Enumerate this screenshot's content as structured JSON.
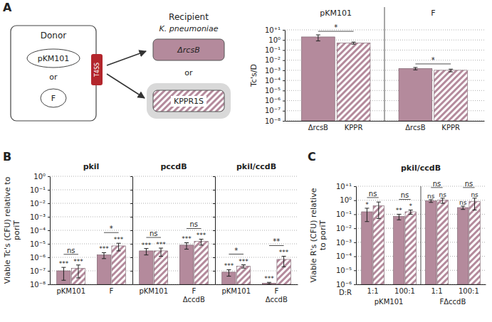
{
  "panel_labels": [
    "A",
    "B",
    "C"
  ],
  "diagram": {
    "donor": "Donor",
    "plasmids": [
      "pKM101",
      "F"
    ],
    "plasmid_or": "or",
    "t4ss": "T4SS",
    "recipient": "Recipient",
    "species": "K. pneumoniae",
    "strains": [
      "ΔrcsB",
      "KPPR1S"
    ],
    "strain_or": "or"
  },
  "chart_data": [
    {
      "type": "bar",
      "log": "y",
      "grid": true,
      "ylabel": "Tc's/D",
      "ylim": [
        1e-08,
        10
      ],
      "yticks": [
        {
          "value": 10,
          "label": "10⁺¹"
        },
        {
          "value": 1,
          "label": "10⁰"
        },
        {
          "value": 0.1,
          "label": "10⁻¹"
        },
        {
          "value": 0.01,
          "label": "10⁻²"
        },
        {
          "value": 0.001,
          "label": "10⁻³"
        },
        {
          "value": 0.0001,
          "label": "10⁻⁴"
        },
        {
          "value": 1e-05,
          "label": "10⁻⁵"
        },
        {
          "value": 1e-06,
          "label": "10⁻⁶"
        },
        {
          "value": 1e-07,
          "label": "10⁻⁷"
        },
        {
          "value": 1e-08,
          "label": "10⁻⁸"
        }
      ],
      "categories": [
        "pKM101",
        "F"
      ],
      "series": [
        {
          "name": "ΔrcsB",
          "color": "#b48a9c",
          "values": [
            2.0,
            0.0015
          ],
          "errors": [
            1.2,
            0.0004
          ]
        },
        {
          "name": "KPPR",
          "color": "#b48a9c",
          "values": [
            0.5,
            0.001
          ],
          "errors": [
            0.12,
            0.0003
          ]
        }
      ],
      "comparisons": [
        "*",
        "*"
      ]
    },
    {
      "type": "bar",
      "log": "y",
      "grid": true,
      "title": "pkil",
      "ylabel": "Viable Tc's (CFU) relative to poriT",
      "ylim": [
        1e-08,
        1
      ],
      "yticks": [
        {
          "value": 1,
          "label": "10⁰"
        },
        {
          "value": 0.1,
          "label": "10⁻¹"
        },
        {
          "value": 0.01,
          "label": "10⁻²"
        },
        {
          "value": 0.001,
          "label": "10⁻³"
        },
        {
          "value": 0.0001,
          "label": "10⁻⁴"
        },
        {
          "value": 1e-05,
          "label": "10⁻⁵"
        },
        {
          "value": 1e-06,
          "label": "10⁻⁶"
        },
        {
          "value": 1e-07,
          "label": "10⁻⁷"
        },
        {
          "value": 1e-08,
          "label": "10⁻⁸"
        }
      ],
      "categories": [
        "pKM101",
        "F"
      ],
      "series": [
        {
          "color": "#b48a9c",
          "values": [
            1e-07,
            1.5e-06
          ],
          "errors": [
            8e-08,
            7e-07
          ],
          "significance": [
            "***",
            "***"
          ]
        },
        {
          "color": "#b48a9c",
          "values": [
            1.5e-07,
            7e-06
          ],
          "errors": [
            1.2e-07,
            4e-06
          ],
          "significance": [
            "***",
            "***"
          ]
        }
      ],
      "comparisons": [
        "ns",
        "*"
      ]
    },
    {
      "type": "bar",
      "log": "y",
      "grid": true,
      "tick_labels": "x",
      "title": "pccdB",
      "ylim": [
        1e-08,
        1
      ],
      "yticks": [
        {
          "value": 1,
          "label": "10⁰"
        },
        {
          "value": 0.1,
          "label": "10⁻¹"
        },
        {
          "value": 0.01,
          "label": "10⁻²"
        },
        {
          "value": 0.001,
          "label": "10⁻³"
        },
        {
          "value": 0.0001,
          "label": "10⁻⁴"
        },
        {
          "value": 1e-05,
          "label": "10⁻⁵"
        },
        {
          "value": 1e-06,
          "label": "10⁻⁶"
        },
        {
          "value": 1e-07,
          "label": "10⁻⁷"
        },
        {
          "value": 1e-08,
          "label": "10⁻⁸"
        }
      ],
      "categories": [
        "pKM101",
        "F ΔccdB"
      ],
      "series": [
        {
          "color": "#b48a9c",
          "values": [
            3e-06,
            8e-06
          ],
          "errors": [
            1.5e-06,
            4e-06
          ],
          "significance": [
            "***",
            "***"
          ]
        },
        {
          "color": "#b48a9c",
          "values": [
            3e-06,
            1.5e-05
          ],
          "errors": [
            1.8e-06,
            7e-06
          ],
          "significance": [
            "***",
            "***"
          ]
        }
      ],
      "comparisons": [
        "ns",
        "ns"
      ]
    },
    {
      "type": "bar",
      "log": "y",
      "grid": true,
      "tick_labels": "x",
      "title": "pkil/ccdB",
      "ylim": [
        1e-08,
        1
      ],
      "yticks": [
        {
          "value": 1,
          "label": "10⁰"
        },
        {
          "value": 0.1,
          "label": "10⁻¹"
        },
        {
          "value": 0.01,
          "label": "10⁻²"
        },
        {
          "value": 0.001,
          "label": "10⁻³"
        },
        {
          "value": 0.0001,
          "label": "10⁻⁴"
        },
        {
          "value": 1e-05,
          "label": "10⁻⁵"
        },
        {
          "value": 1e-06,
          "label": "10⁻⁶"
        },
        {
          "value": 1e-07,
          "label": "10⁻⁷"
        },
        {
          "value": 1e-08,
          "label": "10⁻⁸"
        }
      ],
      "categories": [
        "pKM101",
        "F ΔccdB"
      ],
      "series": [
        {
          "color": "#b48a9c",
          "values": [
            8e-08,
            1.2e-08
          ],
          "errors": [
            4e-08,
            2e-09
          ],
          "significance": [
            "***",
            "***"
          ]
        },
        {
          "color": "#b48a9c",
          "values": [
            2.2e-07,
            7e-07
          ],
          "errors": [
            6e-08,
            5e-07
          ],
          "significance": [
            "***",
            "***"
          ]
        }
      ],
      "comparisons": [
        "*",
        "**"
      ]
    },
    {
      "type": "bar",
      "log": "y",
      "grid": true,
      "title": "pkil/ccdB",
      "ylabel": "Viable R's (CFU) relative to poriT",
      "xlabel": "D:R",
      "ylim": [
        1e-06,
        10
      ],
      "yticks": [
        {
          "value": 10,
          "label": "10⁺¹"
        },
        {
          "value": 1,
          "label": "10⁰"
        },
        {
          "value": 0.1,
          "label": "10⁻¹"
        },
        {
          "value": 0.01,
          "label": "10⁻²"
        },
        {
          "value": 0.001,
          "label": "10⁻³"
        },
        {
          "value": 0.0001,
          "label": "10⁻⁴"
        },
        {
          "value": 1e-05,
          "label": "10⁻⁵"
        },
        {
          "value": 1e-06,
          "label": "10⁻⁶"
        }
      ],
      "categories": [
        "1:1",
        "100:1",
        "1:1",
        "100:1"
      ],
      "group_labels": [
        "pKM101",
        "FΔccdB"
      ],
      "series": [
        {
          "color": "#b48a9c",
          "values": [
            0.15,
            0.07,
            0.9,
            0.3
          ],
          "errors": [
            0.12,
            0.03,
            0.2,
            0.08
          ],
          "significance": [
            "*",
            "**",
            "ns",
            "ns"
          ]
        },
        {
          "color": "#b48a9c",
          "values": [
            0.4,
            0.15,
            1.0,
            0.8
          ],
          "errors": [
            0.35,
            0.05,
            0.4,
            0.6
          ],
          "significance": [
            null,
            "*",
            "ns",
            "ns"
          ]
        }
      ],
      "comparisons": [
        "ns",
        "ns",
        "ns",
        "ns"
      ]
    }
  ]
}
